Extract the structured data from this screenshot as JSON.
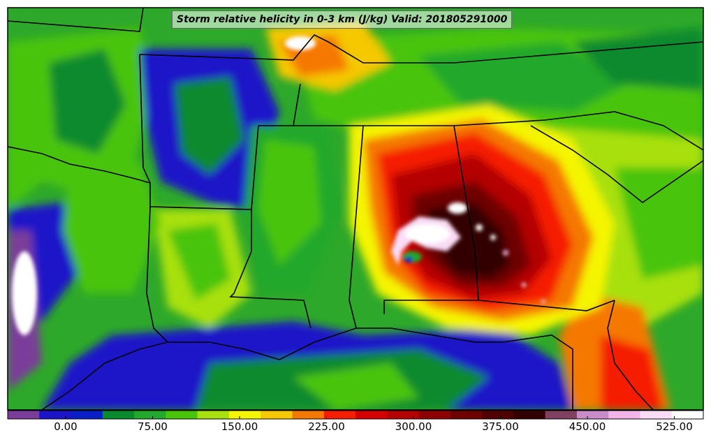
{
  "title": "Storm relative helicity in 0-3 km (J/kg) Valid: 201805291000",
  "colorbar": {
    "colors": [
      "#7a3d99",
      "#1c14c8",
      "#0a1ec8",
      "#0a8a2e",
      "#22a82c",
      "#4ac40a",
      "#a8e010",
      "#f5f500",
      "#f5c800",
      "#f57800",
      "#f51e00",
      "#d40000",
      "#b40000",
      "#8c0000",
      "#6e0000",
      "#500000",
      "#320000",
      "#804060",
      "#c88cc8",
      "#f0b4e6",
      "#fadcf5",
      "#ffffff"
    ],
    "tick_labels": [
      "0.00",
      "75.00",
      "150.00",
      "225.00",
      "300.00",
      "375.00",
      "450.00",
      "525.00"
    ],
    "tick_values": [
      0,
      75,
      150,
      225,
      300,
      375,
      450,
      525
    ],
    "range": [
      -50,
      550
    ]
  },
  "map": {
    "background_color": "#2ea82a",
    "border_color": "#000000"
  }
}
